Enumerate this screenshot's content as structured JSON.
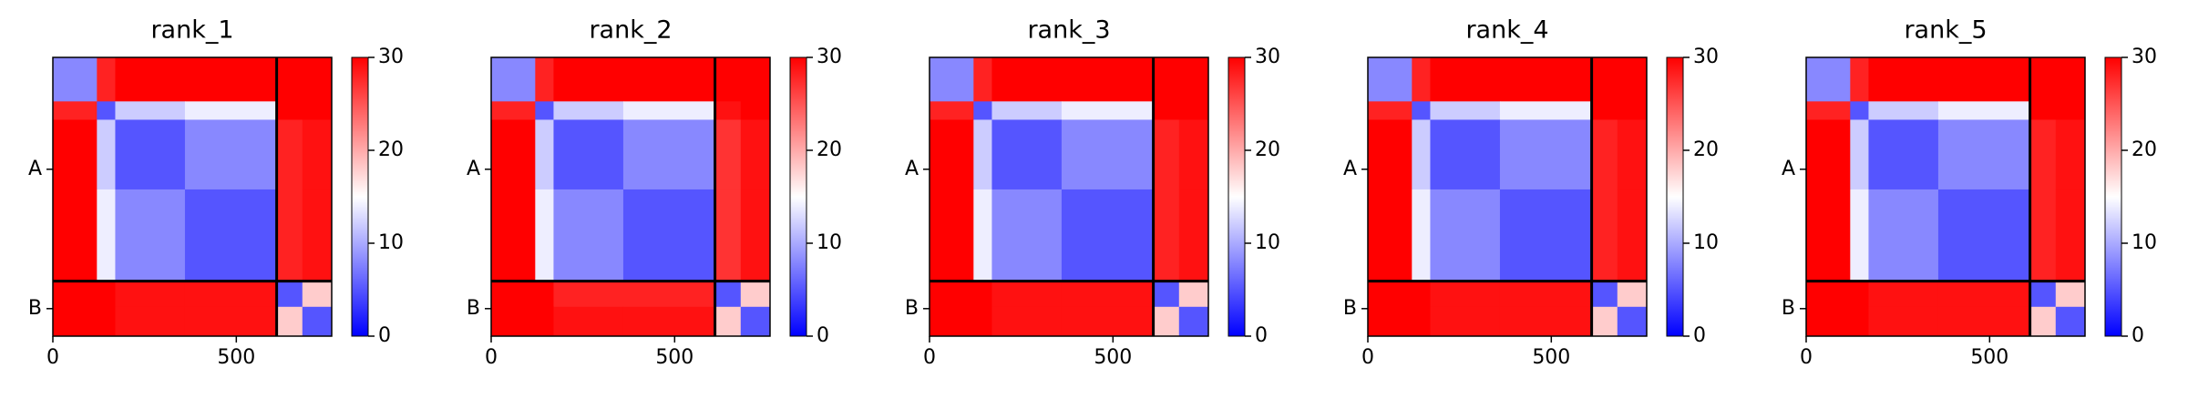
{
  "chart_data": [
    {
      "type": "heatmap",
      "title": "rank_1",
      "colormap": "bwr",
      "clim": [
        0,
        30
      ],
      "colorbar_ticks": [
        0,
        10,
        20,
        30
      ],
      "bins": [
        0,
        120,
        170,
        360,
        610,
        680,
        760
      ],
      "matrix": [
        [
          8,
          28,
          30,
          30,
          30,
          30
        ],
        [
          28,
          5,
          12,
          14,
          30,
          30
        ],
        [
          30,
          12,
          5,
          8,
          28,
          29
        ],
        [
          30,
          14,
          8,
          5,
          28,
          29
        ],
        [
          30,
          30,
          29,
          29,
          5,
          18
        ],
        [
          30,
          30,
          29,
          29,
          18,
          5
        ]
      ],
      "xlim": [
        0,
        760
      ],
      "ylim": [
        760,
        0
      ],
      "xticks": [
        0,
        500
      ],
      "yticks": [
        {
          "value": 305,
          "label": "A"
        },
        {
          "value": 685,
          "label": "B"
        }
      ],
      "chain_breaks": [
        610
      ]
    },
    {
      "type": "heatmap",
      "title": "rank_2",
      "colormap": "bwr",
      "clim": [
        0,
        30
      ],
      "colorbar_ticks": [
        0,
        10,
        20,
        30
      ],
      "bins": [
        0,
        120,
        170,
        360,
        610,
        680,
        760
      ],
      "matrix": [
        [
          8,
          28,
          30,
          30,
          30,
          30
        ],
        [
          28,
          5,
          12,
          14,
          29,
          30
        ],
        [
          30,
          12,
          5,
          8,
          27,
          29
        ],
        [
          30,
          14,
          8,
          5,
          27,
          29
        ],
        [
          30,
          30,
          28,
          28,
          5,
          18
        ],
        [
          30,
          30,
          29,
          29,
          18,
          5
        ]
      ],
      "xlim": [
        0,
        760
      ],
      "ylim": [
        760,
        0
      ],
      "xticks": [
        0,
        500
      ],
      "yticks": [
        {
          "value": 305,
          "label": "A"
        },
        {
          "value": 685,
          "label": "B"
        }
      ],
      "chain_breaks": [
        610
      ]
    },
    {
      "type": "heatmap",
      "title": "rank_3",
      "colormap": "bwr",
      "clim": [
        0,
        30
      ],
      "colorbar_ticks": [
        0,
        10,
        20,
        30
      ],
      "bins": [
        0,
        120,
        170,
        360,
        610,
        680,
        760
      ],
      "matrix": [
        [
          8,
          28,
          30,
          30,
          30,
          30
        ],
        [
          28,
          5,
          12,
          14,
          30,
          30
        ],
        [
          30,
          12,
          5,
          8,
          28,
          29
        ],
        [
          30,
          14,
          8,
          5,
          28,
          29
        ],
        [
          30,
          30,
          29,
          29,
          5,
          18
        ],
        [
          30,
          30,
          29,
          29,
          18,
          5
        ]
      ],
      "xlim": [
        0,
        760
      ],
      "ylim": [
        760,
        0
      ],
      "xticks": [
        0,
        500
      ],
      "yticks": [
        {
          "value": 305,
          "label": "A"
        },
        {
          "value": 685,
          "label": "B"
        }
      ],
      "chain_breaks": [
        610
      ]
    },
    {
      "type": "heatmap",
      "title": "rank_4",
      "colormap": "bwr",
      "clim": [
        0,
        30
      ],
      "colorbar_ticks": [
        0,
        10,
        20,
        30
      ],
      "bins": [
        0,
        120,
        170,
        360,
        610,
        680,
        760
      ],
      "matrix": [
        [
          8,
          28,
          30,
          30,
          30,
          30
        ],
        [
          28,
          5,
          12,
          14,
          30,
          30
        ],
        [
          30,
          12,
          5,
          8,
          28,
          29
        ],
        [
          30,
          14,
          8,
          5,
          28,
          29
        ],
        [
          30,
          30,
          29,
          29,
          5,
          18
        ],
        [
          30,
          30,
          29,
          29,
          18,
          5
        ]
      ],
      "xlim": [
        0,
        760
      ],
      "ylim": [
        760,
        0
      ],
      "xticks": [
        0,
        500
      ],
      "yticks": [
        {
          "value": 305,
          "label": "A"
        },
        {
          "value": 685,
          "label": "B"
        }
      ],
      "chain_breaks": [
        610
      ]
    },
    {
      "type": "heatmap",
      "title": "rank_5",
      "colormap": "bwr",
      "clim": [
        0,
        30
      ],
      "colorbar_ticks": [
        0,
        10,
        20,
        30
      ],
      "bins": [
        0,
        120,
        170,
        360,
        610,
        680,
        760
      ],
      "matrix": [
        [
          8,
          28,
          30,
          30,
          30,
          30
        ],
        [
          28,
          5,
          12,
          14,
          30,
          30
        ],
        [
          30,
          12,
          5,
          8,
          28,
          29
        ],
        [
          30,
          14,
          8,
          5,
          28,
          29
        ],
        [
          30,
          30,
          29,
          29,
          5,
          18
        ],
        [
          30,
          30,
          29,
          29,
          18,
          5
        ]
      ],
      "xlim": [
        0,
        760
      ],
      "ylim": [
        760,
        0
      ],
      "xticks": [
        0,
        500
      ],
      "yticks": [
        {
          "value": 305,
          "label": "A"
        },
        {
          "value": 685,
          "label": "B"
        }
      ],
      "chain_breaks": [
        610
      ]
    }
  ]
}
